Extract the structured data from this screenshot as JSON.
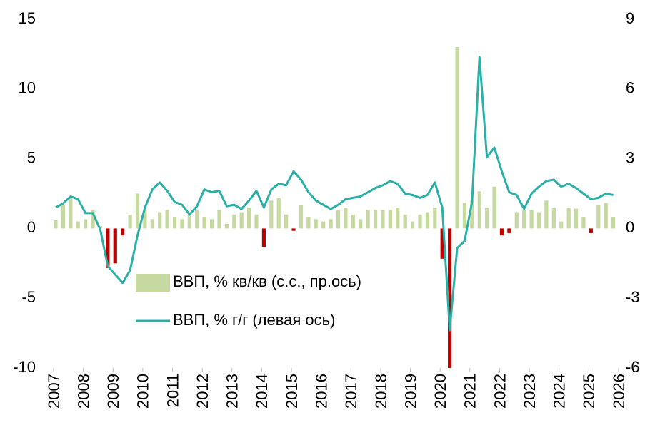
{
  "chart_data": {
    "type": "combo",
    "x": [
      2007,
      2007.25,
      2007.5,
      2007.75,
      2008,
      2008.25,
      2008.5,
      2008.75,
      2009,
      2009.25,
      2009.5,
      2009.75,
      2010,
      2010.25,
      2010.5,
      2010.75,
      2011,
      2011.25,
      2011.5,
      2011.75,
      2012,
      2012.25,
      2012.5,
      2012.75,
      2013,
      2013.25,
      2013.5,
      2013.75,
      2014,
      2014.25,
      2014.5,
      2014.75,
      2015,
      2015.25,
      2015.5,
      2015.75,
      2016,
      2016.25,
      2016.5,
      2016.75,
      2017,
      2017.25,
      2017.5,
      2017.75,
      2018,
      2018.25,
      2018.5,
      2018.75,
      2019,
      2019.25,
      2019.5,
      2019.75,
      2020,
      2020.25,
      2020.5,
      2020.75,
      2021,
      2021.25,
      2021.5,
      2021.75,
      2022,
      2022.25,
      2022.5,
      2022.75,
      2023,
      2023.25,
      2023.5,
      2023.75,
      2024,
      2024.25,
      2024.5,
      2024.75,
      2025,
      2025.25,
      2025.5,
      2025.75
    ],
    "xlim": [
      2007,
      2026
    ],
    "xticks": [
      2007,
      2008,
      2009,
      2010,
      2011,
      2012,
      2013,
      2014,
      2015,
      2016,
      2017,
      2018,
      2019,
      2020,
      2021,
      2022,
      2023,
      2024,
      2025,
      2026
    ],
    "ylim": [
      -10,
      15
    ],
    "yticks": [
      -10,
      -5,
      0,
      5,
      10,
      15
    ],
    "y2lim": [
      -6,
      9
    ],
    "y2ticks": [
      -6,
      -3,
      0,
      3,
      6,
      9
    ],
    "legend": "lower left",
    "series": [
      {
        "name": "ВВП, % кв/кв (с.с., пр.ось)",
        "type": "bar",
        "axis": "y2",
        "color": "#c6d9a0",
        "negative_color": "#c00000",
        "values": [
          0.35,
          1.0,
          1.3,
          0.3,
          0.4,
          0.8,
          0.1,
          -1.7,
          -1.5,
          -0.3,
          0.6,
          1.5,
          0.8,
          0.4,
          0.7,
          0.8,
          0.5,
          0.4,
          0.6,
          0.8,
          0.5,
          0.4,
          0.8,
          0.2,
          0.6,
          0.7,
          0.9,
          0.6,
          -0.8,
          1.2,
          1.3,
          0.6,
          -0.1,
          1.0,
          0.5,
          0.4,
          0.3,
          0.4,
          0.8,
          0.9,
          0.6,
          0.4,
          0.8,
          0.8,
          0.8,
          0.8,
          0.9,
          0.6,
          0.3,
          0.6,
          0.7,
          0.9,
          -1.3,
          -6.0,
          7.8,
          1.1,
          1.2,
          1.6,
          0.9,
          1.8,
          -0.3,
          -0.2,
          0.7,
          0.8,
          0.8,
          0.7,
          1.2,
          0.9,
          0.3,
          0.9,
          0.85,
          0.5,
          -0.2,
          1.0,
          1.1,
          0.5
        ]
      },
      {
        "name": "ВВП, % г/г (левая ось)",
        "type": "line",
        "axis": "y",
        "color": "#2bb0a8",
        "values": [
          1.5,
          1.8,
          2.3,
          2.1,
          1.1,
          1.1,
          -0.1,
          -2.7,
          -3.3,
          -3.9,
          -3.0,
          -0.5,
          1.5,
          2.8,
          3.3,
          2.7,
          1.9,
          1.7,
          1.0,
          1.6,
          2.8,
          2.6,
          2.7,
          1.6,
          1.7,
          1.4,
          2.0,
          2.7,
          1.5,
          2.8,
          3.2,
          3.1,
          4.1,
          3.5,
          2.6,
          2.0,
          1.7,
          1.4,
          1.7,
          2.1,
          2.2,
          2.3,
          2.6,
          2.9,
          3.1,
          3.4,
          3.2,
          2.5,
          2.4,
          2.2,
          2.4,
          3.3,
          1.5,
          -7.3,
          -1.4,
          -0.9,
          1.9,
          12.3,
          5.1,
          5.8,
          4.1,
          2.6,
          2.4,
          1.4,
          2.5,
          3.0,
          3.4,
          3.5,
          3.0,
          3.2,
          2.9,
          2.5,
          2.1,
          2.2,
          2.5,
          2.4
        ]
      }
    ]
  }
}
